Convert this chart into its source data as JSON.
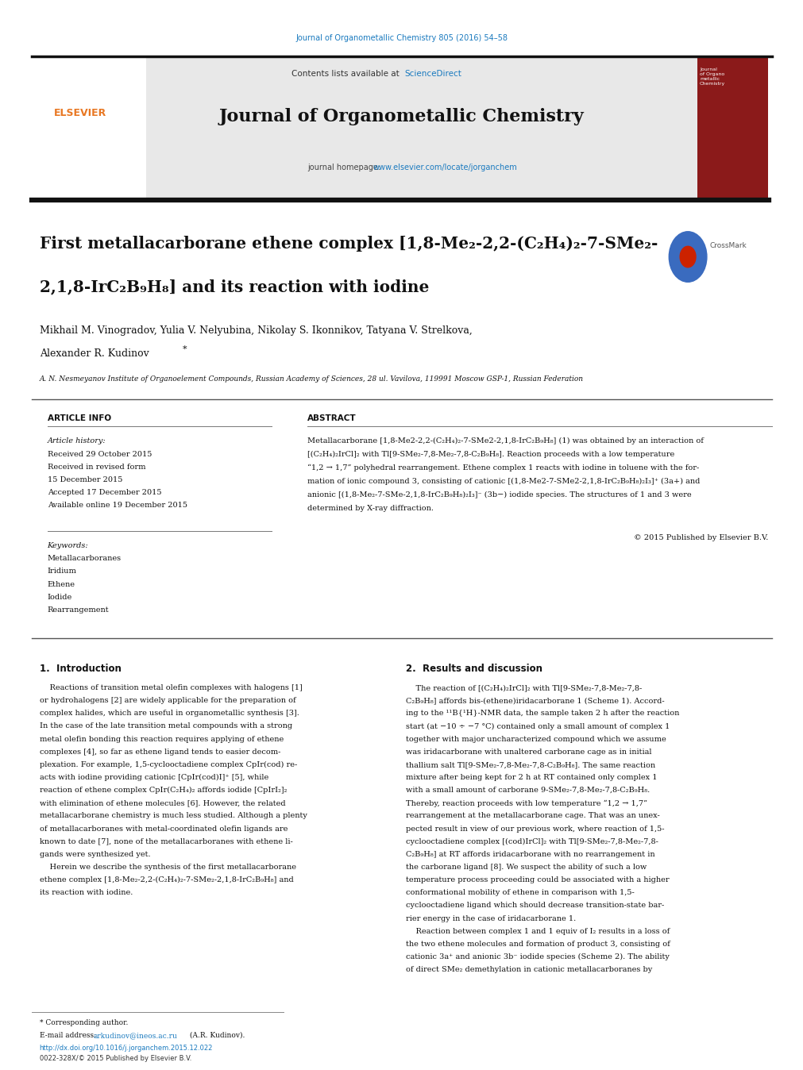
{
  "page_width": 9.92,
  "page_height": 13.23,
  "bg_color": "#ffffff",
  "top_link_text": "Journal of Organometallic Chemistry 805 (2016) 54–58",
  "top_link_color": "#1a7abf",
  "header_bg": "#e8e8e8",
  "header_sciencedirect": "ScienceDirect",
  "header_journal_name": "Journal of Organometallic Chemistry",
  "header_homepage_url": "www.elsevier.com/locate/jorganchem",
  "article_title_line1": "First metallacarborane ethene complex [1,8-Me₂-2,2-(C₂H₄)₂-7-SMe₂-",
  "article_title_line2": "2,1,8-IrC₂B₉H₈] and its reaction with iodine",
  "article_info_title": "ARTICLE INFO",
  "abstract_title": "ABSTRACT",
  "article_history_label": "Article history:",
  "received": "Received 29 October 2015",
  "received_revised": "Received in revised form",
  "received_revised2": "15 December 2015",
  "accepted": "Accepted 17 December 2015",
  "available": "Available online 19 December 2015",
  "keywords_label": "Keywords:",
  "keywords": [
    "Metallacarboranes",
    "Iridium",
    "Ethene",
    "Iodide",
    "Rearrangement"
  ],
  "copyright_text": "© 2015 Published by Elsevier B.V.",
  "intro_title": "1.  Introduction",
  "results_title": "2.  Results and discussion",
  "affiliation": "A. N. Nesmeyanov Institute of Organoelement Compounds, Russian Academy of Sciences, 28 ul. Vavilova, 119991 Moscow GSP-1, Russian Federation",
  "footnote_star": "* Corresponding author.",
  "footnote_email_label": "E-mail address: ",
  "footnote_email": "arkudinov@ineos.ac.ru",
  "footnote_email_end": " (A.R. Kudinov).",
  "doi_text": "http://dx.doi.org/10.1016/j.jorganchem.2015.12.022",
  "issn_text": "0022-328X/© 2015 Published by Elsevier B.V.",
  "link_color": "#1a7abf",
  "elsevier_color": "#e87722"
}
